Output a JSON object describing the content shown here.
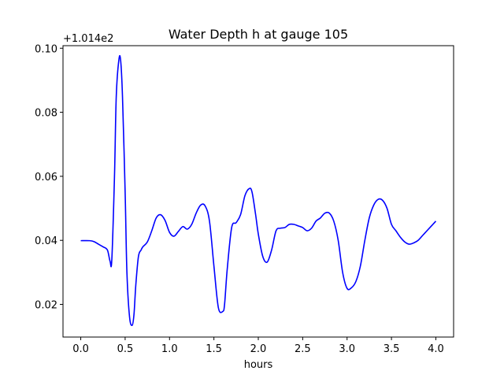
{
  "chart_data": {
    "type": "line",
    "title": "Water Depth h at gauge 105",
    "xlabel": "hours",
    "ylabel": "",
    "offset_label": "+1.014e2",
    "xlim": [
      -0.2,
      4.2
    ],
    "ylim": [
      0.0098,
      0.1008
    ],
    "xticks": [
      0.0,
      0.5,
      1.0,
      1.5,
      2.0,
      2.5,
      3.0,
      3.5,
      4.0
    ],
    "xtick_labels": [
      "0.0",
      "0.5",
      "1.0",
      "1.5",
      "2.0",
      "2.5",
      "3.0",
      "3.5",
      "4.0"
    ],
    "yticks": [
      0.02,
      0.04,
      0.06,
      0.08,
      0.1
    ],
    "ytick_labels": [
      "0.02",
      "0.04",
      "0.06",
      "0.08",
      "0.10"
    ],
    "grid": false,
    "series": [
      {
        "color": "#0000ff",
        "x": [
          0.0,
          0.1,
          0.15,
          0.2,
          0.25,
          0.3,
          0.33,
          0.35,
          0.38,
          0.4,
          0.43,
          0.45,
          0.47,
          0.5,
          0.52,
          0.55,
          0.58,
          0.6,
          0.62,
          0.65,
          0.68,
          0.7,
          0.75,
          0.8,
          0.85,
          0.9,
          0.95,
          1.0,
          1.05,
          1.1,
          1.15,
          1.2,
          1.25,
          1.3,
          1.35,
          1.4,
          1.45,
          1.5,
          1.55,
          1.6,
          1.62,
          1.65,
          1.7,
          1.75,
          1.8,
          1.85,
          1.9,
          1.93,
          1.97,
          2.0,
          2.05,
          2.1,
          2.15,
          2.2,
          2.25,
          2.3,
          2.35,
          2.4,
          2.45,
          2.5,
          2.55,
          2.6,
          2.65,
          2.7,
          2.75,
          2.8,
          2.85,
          2.9,
          2.95,
          3.0,
          3.05,
          3.1,
          3.15,
          3.2,
          3.25,
          3.3,
          3.35,
          3.4,
          3.45,
          3.5,
          3.55,
          3.6,
          3.65,
          3.7,
          3.75,
          3.8,
          3.85,
          3.9,
          3.95,
          4.0
        ],
        "y": [
          0.0399,
          0.0399,
          0.0396,
          0.0388,
          0.038,
          0.037,
          0.0335,
          0.034,
          0.06,
          0.085,
          0.0965,
          0.096,
          0.085,
          0.055,
          0.03,
          0.016,
          0.0135,
          0.017,
          0.026,
          0.035,
          0.037,
          0.038,
          0.0395,
          0.043,
          0.047,
          0.048,
          0.0462,
          0.0425,
          0.0413,
          0.0428,
          0.0443,
          0.0435,
          0.045,
          0.0485,
          0.051,
          0.0508,
          0.046,
          0.032,
          0.019,
          0.0178,
          0.02,
          0.031,
          0.044,
          0.0455,
          0.048,
          0.054,
          0.0562,
          0.055,
          0.048,
          0.042,
          0.035,
          0.0332,
          0.037,
          0.043,
          0.0438,
          0.044,
          0.045,
          0.045,
          0.0445,
          0.044,
          0.043,
          0.0438,
          0.046,
          0.047,
          0.0485,
          0.0485,
          0.046,
          0.04,
          0.03,
          0.025,
          0.0252,
          0.0272,
          0.032,
          0.04,
          0.047,
          0.051,
          0.0528,
          0.0525,
          0.05,
          0.045,
          0.043,
          0.041,
          0.0395,
          0.0388,
          0.0392,
          0.04,
          0.0415,
          0.043,
          0.0445,
          0.046
        ]
      }
    ]
  }
}
